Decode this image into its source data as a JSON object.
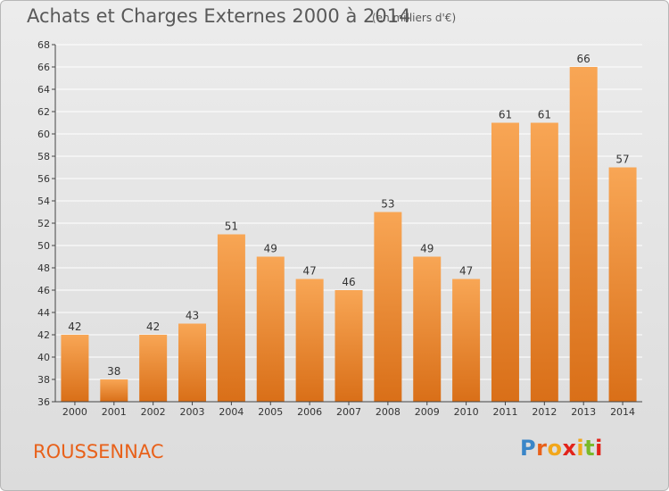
{
  "header": {
    "title": "Achats et Charges Externes 2000 à 2014",
    "subtitle": "(en milliers d'€)"
  },
  "footer": {
    "place": "ROUSSENNAC",
    "logo": {
      "text": "Proxiti",
      "letter_colors": [
        "#3a86c8",
        "#e8611a",
        "#f2a71b",
        "#e2231a",
        "#f2a71b",
        "#7ab929",
        "#e2231a"
      ]
    }
  },
  "colors": {
    "bar_top": "#f8a655",
    "bar_bottom": "#d96f18",
    "grid": "#ffffff",
    "axis": "#444444",
    "title_text": "#595959",
    "place_text": "#e8611a"
  },
  "chart_data": {
    "type": "bar",
    "title": "Achats et Charges Externes 2000 à 2014",
    "subtitle": "(en milliers d'€)",
    "categories": [
      "2000",
      "2001",
      "2002",
      "2003",
      "2004",
      "2005",
      "2006",
      "2007",
      "2008",
      "2009",
      "2010",
      "2011",
      "2012",
      "2013",
      "2014"
    ],
    "values": [
      42,
      38,
      42,
      43,
      51,
      49,
      47,
      46,
      53,
      49,
      47,
      61,
      61,
      66,
      57
    ],
    "ylim": [
      36,
      68
    ],
    "yticks": [
      36,
      38,
      40,
      42,
      44,
      46,
      48,
      50,
      52,
      54,
      56,
      58,
      60,
      62,
      64,
      66,
      68
    ],
    "grid": true,
    "data_labels": true
  }
}
